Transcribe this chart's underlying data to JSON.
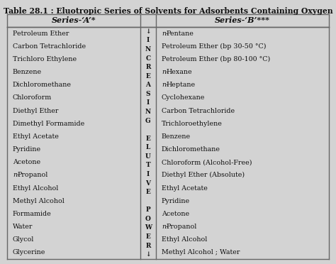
{
  "title": "Table 28.1 : Eluotropic Series of Solvents for Adsorbents Containing Oxygen",
  "col_a_header": "Series-‘A’*",
  "col_b_header": "Series-‘B’***",
  "series_a": [
    "Petroleum Ether",
    "Carbon Tetrachloride",
    "Trichloro Ethylene",
    "Benzene",
    "Dichloromethane",
    "Chloroform",
    "Diethyl Ether",
    "Dimethyl Formamide",
    "Ethyl Acetate",
    "Pyridine",
    "Acetone",
    "n-Propanol",
    "Ethyl Alcohol",
    "Methyl Alcohol",
    "Formamide",
    "Water",
    "Glycol",
    "Glycerine"
  ],
  "series_b": [
    "n-Pentane",
    "Petroleum Ether (bp 30-50 °C)",
    "Petroleum Ether (bp 80-100 °C)",
    "n-Hexane",
    "n-Heptane",
    "Cyclohexane",
    "Carbon Tetrachloride",
    "Trichloroethylene",
    "Benzene",
    "Dichloromethane",
    "Chloroform (Alcohol-Free)",
    "Diethyl Ether (Absolute)",
    "Ethyl Acetate",
    "Pyridine",
    "Acetone",
    "n-Propanol",
    "Ethyl Alcohol",
    "Methyl Alcohol ; Water"
  ],
  "middle_letters": [
    "↓",
    "I",
    "N",
    "C",
    "R",
    "E",
    "A",
    "S",
    "I",
    "N",
    "G",
    "",
    "E",
    "L",
    "U",
    "T",
    "I",
    "V",
    "E",
    "",
    "P",
    "O",
    "W",
    "E",
    "R",
    "↓"
  ],
  "bg_color": "#d3d3d3",
  "line_color": "#666666",
  "text_color": "#111111",
  "title_fontsize": 7.8,
  "header_fontsize": 8,
  "cell_fontsize": 6.8,
  "mid_fontsize": 6.5
}
